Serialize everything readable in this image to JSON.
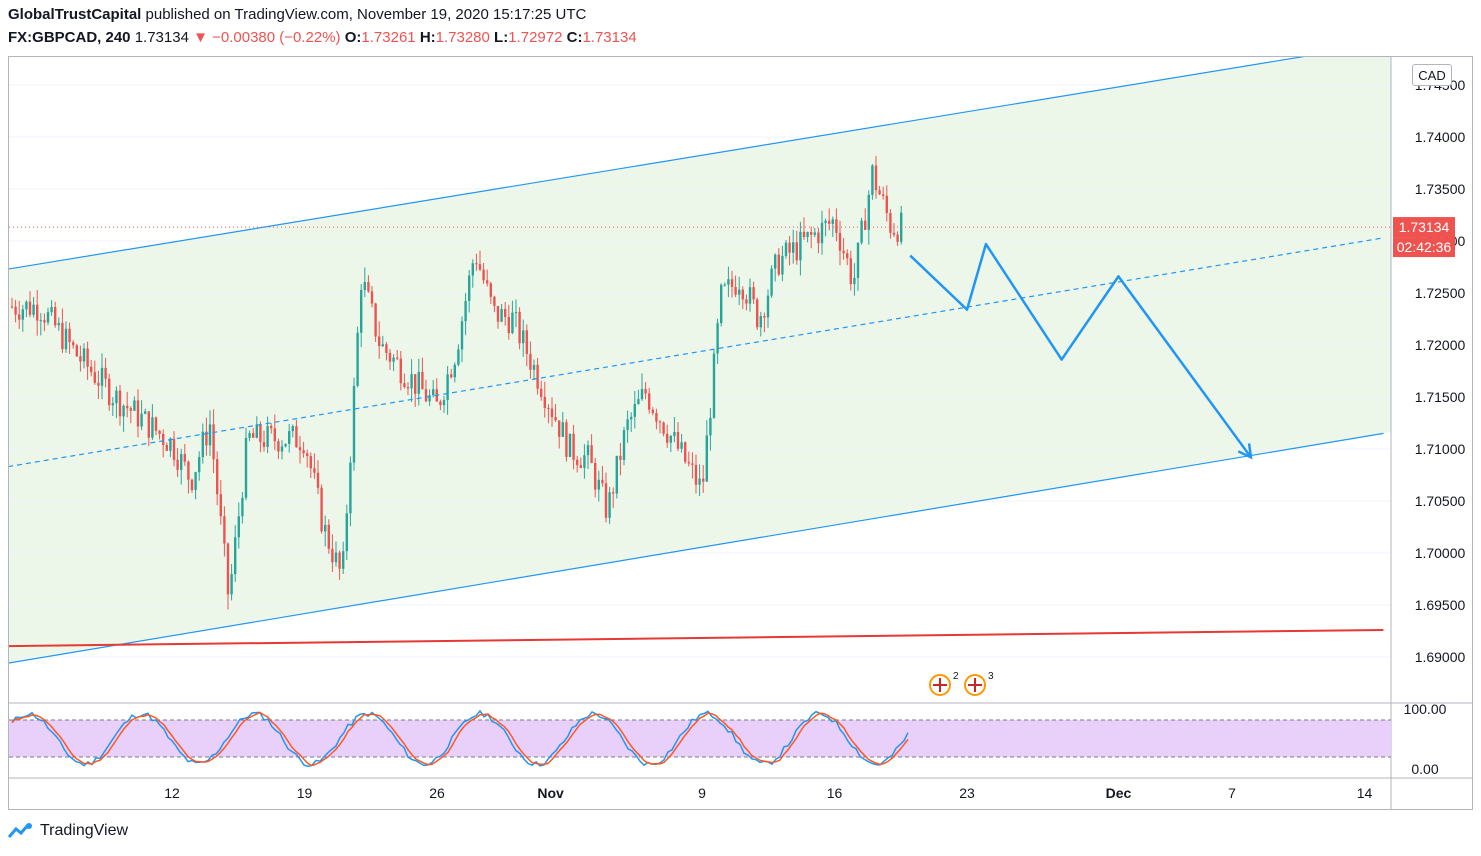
{
  "header": {
    "publisher": "GlobalTrustCapital",
    "published_text": "published on TradingView.com, November 19, 2020 15:17:25 UTC",
    "symbol": "FX:GBPCAD, 240",
    "last": "1.73134",
    "change": "▼ −0.00380 (−0.22%)",
    "open_label": "O:",
    "open": "1.73261",
    "high_label": "H:",
    "high": "1.73280",
    "low_label": "L:",
    "low": "1.72972",
    "close_label": "C:",
    "close": "1.73134"
  },
  "footer": {
    "brand": "TradingView"
  },
  "colors": {
    "up": "#26a69a",
    "down": "#ef5350",
    "channel": "#2196f3",
    "support": "#e53935",
    "channel_fill": "#edf7e9",
    "stoch_fill": "#e9d0fb",
    "stoch_k": "#2196f3",
    "stoch_d": "#ff5722"
  },
  "chart_data": {
    "type": "candlestick",
    "symbol": "FX:GBPCAD",
    "interval": "240",
    "currency": "CAD",
    "price_axis": {
      "ticks": [
        "1.74500",
        "1.74000",
        "1.73500",
        "1.73000",
        "1.72500",
        "1.72000",
        "1.71500",
        "1.71000",
        "1.70500",
        "1.70000",
        "1.69500",
        "1.69000"
      ],
      "ylim": [
        1.686,
        1.746
      ]
    },
    "time_axis": {
      "ticks": [
        "12",
        "19",
        "26",
        "Nov",
        "9",
        "16",
        "23",
        "Dec",
        "7",
        "14"
      ],
      "tick_dates": [
        "2020-10-12",
        "2020-10-19",
        "2020-10-26",
        "2020-11-01",
        "2020-11-09",
        "2020-11-16",
        "2020-11-23",
        "2020-12-01",
        "2020-12-07",
        "2020-12-14"
      ]
    },
    "last_price_label": "1.73134",
    "countdown_label": "02:42:36",
    "close_approx": [
      {
        "date": "2020-10-05",
        "close": 1.7237
      },
      {
        "date": "2020-10-07",
        "close": 1.719
      },
      {
        "date": "2020-10-09",
        "close": 1.715
      },
      {
        "date": "2020-10-12",
        "close": 1.7105
      },
      {
        "date": "2020-10-13",
        "close": 1.707
      },
      {
        "date": "2020-10-14",
        "close": 1.7125
      },
      {
        "date": "2020-10-15",
        "close": 1.6955
      },
      {
        "date": "2020-10-16",
        "close": 1.711
      },
      {
        "date": "2020-10-19",
        "close": 1.711
      },
      {
        "date": "2020-10-20",
        "close": 1.7025
      },
      {
        "date": "2020-10-21",
        "close": 1.6975
      },
      {
        "date": "2020-10-22",
        "close": 1.7265
      },
      {
        "date": "2020-10-23",
        "close": 1.72
      },
      {
        "date": "2020-10-26",
        "close": 1.714
      },
      {
        "date": "2020-10-27",
        "close": 1.7195
      },
      {
        "date": "2020-10-28",
        "close": 1.729
      },
      {
        "date": "2020-10-29",
        "close": 1.723
      },
      {
        "date": "2020-10-30",
        "close": 1.7225
      },
      {
        "date": "2020-11-02",
        "close": 1.71
      },
      {
        "date": "2020-11-03",
        "close": 1.709
      },
      {
        "date": "2020-11-04",
        "close": 1.704
      },
      {
        "date": "2020-11-05",
        "close": 1.712
      },
      {
        "date": "2020-11-06",
        "close": 1.7155
      },
      {
        "date": "2020-11-09",
        "close": 1.706
      },
      {
        "date": "2020-11-10",
        "close": 1.7245
      },
      {
        "date": "2020-11-11",
        "close": 1.7265
      },
      {
        "date": "2020-11-12",
        "close": 1.7225
      },
      {
        "date": "2020-11-13",
        "close": 1.728
      },
      {
        "date": "2020-11-16",
        "close": 1.732
      },
      {
        "date": "2020-11-17",
        "close": 1.726
      },
      {
        "date": "2020-11-18",
        "close": 1.7365
      },
      {
        "date": "2020-11-19",
        "close": 1.73134
      }
    ],
    "drawings": {
      "channel_upper": {
        "start": {
          "date": "2020-10-01",
          "price": 1.7266
        },
        "end": {
          "date": "2020-12-11",
          "price": 1.7478
        }
      },
      "channel_middle": {
        "start": {
          "date": "2020-10-01",
          "price": 1.7076
        },
        "end": {
          "date": "2020-12-15",
          "price": 1.7303
        }
      },
      "channel_lower": {
        "start": {
          "date": "2020-10-01",
          "price": 1.6887
        },
        "end": {
          "date": "2020-12-15",
          "price": 1.7115
        }
      },
      "support_line": {
        "start": {
          "date": "2020-10-01",
          "price": 1.691
        },
        "end": {
          "date": "2020-12-15",
          "price": 1.6926
        }
      },
      "projection_path": [
        {
          "date": "2020-11-20",
          "price": 1.7286
        },
        {
          "date": "2020-11-23",
          "price": 1.7234
        },
        {
          "date": "2020-11-24",
          "price": 1.7297
        },
        {
          "date": "2020-11-28",
          "price": 1.7186
        },
        {
          "date": "2020-12-01",
          "price": 1.7266
        },
        {
          "date": "2020-12-08",
          "price": 1.7092
        }
      ]
    },
    "event_markers": [
      "2",
      "3"
    ],
    "stochastic": {
      "ticks": [
        "100.00",
        "0.00"
      ],
      "upper_band": 80,
      "lower_band": 20,
      "series": [
        "%K",
        "%D"
      ]
    }
  }
}
